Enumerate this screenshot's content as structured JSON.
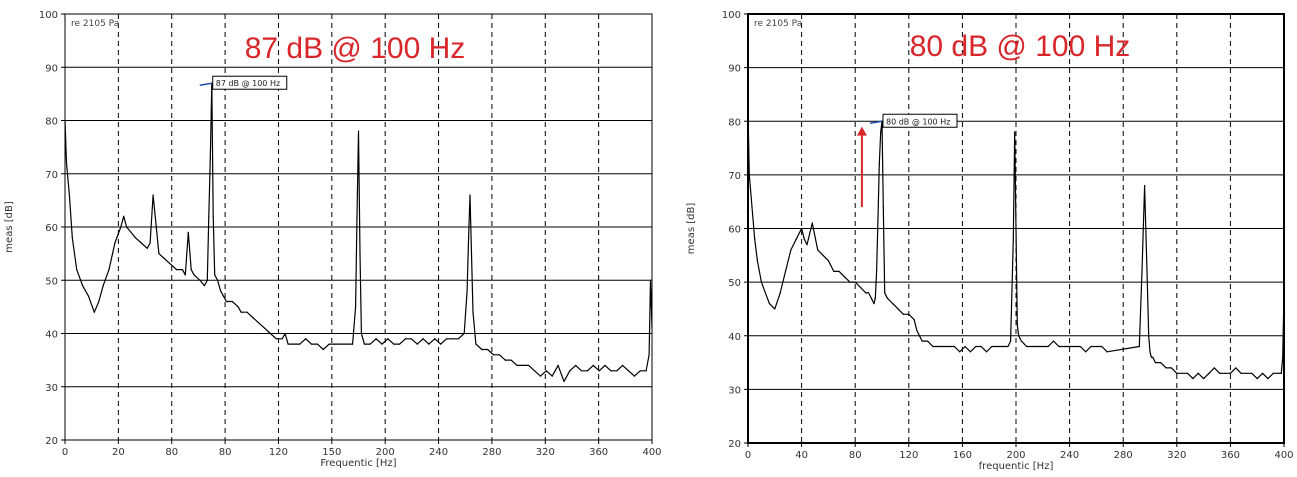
{
  "chart_data": [
    {
      "type": "line",
      "title": "",
      "annotation": "87 dB @ 100 Hz",
      "reference_label": "re 2105 Pa",
      "xlabel": "Frequentic [Hz]",
      "ylabel": "meas [dB]",
      "xlim": [
        0,
        400
      ],
      "ylim": [
        20,
        100
      ],
      "xticks": [
        "0",
        "20",
        "80",
        "80",
        "120",
        "150",
        "200",
        "240",
        "280",
        "320",
        "360",
        "400"
      ],
      "yticks": [
        "20",
        "30",
        "40",
        "50",
        "60",
        "70",
        "80",
        "90",
        "100"
      ],
      "grid": true,
      "callout": {
        "text": "87 dB @ 100 Hz",
        "x": 100,
        "y": 87
      },
      "series": [
        {
          "color": "#000000",
          "x": [
            0,
            1,
            3,
            5,
            8,
            12,
            16,
            20,
            23,
            26,
            30,
            34,
            38,
            40,
            42,
            45,
            48,
            52,
            56,
            58,
            60,
            64,
            68,
            72,
            76,
            80,
            82,
            84,
            86,
            88,
            92,
            95,
            97,
            98,
            99,
            100,
            101,
            102,
            104,
            106,
            108,
            110,
            114,
            118,
            120,
            124,
            128,
            132,
            136,
            140,
            144,
            148,
            150,
            152,
            156,
            160,
            164,
            168,
            172,
            176,
            180,
            184,
            188,
            192,
            196,
            198,
            199,
            200,
            201,
            202,
            204,
            208,
            212,
            216,
            220,
            224,
            228,
            232,
            236,
            240,
            244,
            248,
            252,
            256,
            260,
            264,
            268,
            272,
            274,
            275,
            276,
            277,
            278,
            280,
            284,
            288,
            292,
            296,
            300,
            304,
            308,
            312,
            316,
            320,
            324,
            328,
            332,
            336,
            340,
            344,
            348,
            352,
            356,
            360,
            364,
            368,
            372,
            376,
            380,
            384,
            388,
            392,
            396,
            398,
            399,
            400
          ],
          "y": [
            80,
            72,
            66,
            58,
            52,
            49,
            47,
            44,
            46,
            49,
            52,
            57,
            60,
            62,
            60,
            59,
            58,
            57,
            56,
            57,
            66,
            55,
            54,
            53,
            52,
            52,
            51,
            59,
            52,
            51,
            50,
            49,
            50,
            62,
            73,
            87,
            62,
            51,
            50,
            48,
            47,
            46,
            46,
            45,
            44,
            44,
            43,
            42,
            41,
            40,
            39,
            39,
            40,
            38,
            38,
            38,
            39,
            38,
            38,
            37,
            38,
            38,
            38,
            38,
            38,
            45,
            62,
            78,
            55,
            40,
            38,
            38,
            39,
            38,
            39,
            38,
            38,
            39,
            39,
            38,
            39,
            38,
            39,
            38,
            39,
            39,
            39,
            40,
            48,
            58,
            66,
            55,
            44,
            38,
            37,
            37,
            36,
            36,
            35,
            35,
            34,
            34,
            34,
            33,
            32,
            33,
            32,
            34,
            31,
            33,
            34,
            33,
            33,
            34,
            33,
            34,
            33,
            33,
            34,
            33,
            32,
            33,
            33,
            36,
            50,
            41
          ]
        }
      ]
    },
    {
      "type": "line",
      "title": "",
      "annotation": "80 dB @ 100 Hz",
      "reference_label": "re 2105 Pa",
      "xlabel": "frequentic [Hz]",
      "ylabel": "meas [dB]",
      "xlim": [
        0,
        400
      ],
      "ylim": [
        20,
        100
      ],
      "xticks": [
        "0",
        "40",
        "80",
        "120",
        "160",
        "200",
        "240",
        "280",
        "320",
        "360",
        "400"
      ],
      "yticks": [
        "20",
        "30",
        "40",
        "50",
        "60",
        "70",
        "80",
        "90",
        "100"
      ],
      "grid": true,
      "callout": {
        "text": "80 dB @ 100 Hz",
        "x": 100,
        "y": 80
      },
      "arrow": {
        "x": 85,
        "y_from": 64,
        "y_to": 79,
        "color": "#d9262b"
      },
      "series": [
        {
          "color": "#000000",
          "x": [
            0,
            1,
            3,
            5,
            7,
            10,
            13,
            16,
            20,
            24,
            28,
            32,
            36,
            38,
            40,
            42,
            44,
            48,
            52,
            56,
            60,
            62,
            64,
            68,
            72,
            76,
            80,
            84,
            88,
            90,
            92,
            94,
            95,
            96,
            97,
            98,
            99,
            100,
            101,
            102,
            104,
            108,
            112,
            116,
            120,
            124,
            126,
            128,
            130,
            134,
            138,
            142,
            146,
            150,
            154,
            158,
            162,
            166,
            170,
            174,
            178,
            182,
            186,
            190,
            194,
            196,
            198,
            199,
            200,
            201,
            202,
            204,
            208,
            212,
            216,
            220,
            224,
            228,
            232,
            236,
            240,
            244,
            248,
            252,
            256,
            260,
            264,
            268,
            292,
            294,
            296,
            298,
            299,
            300,
            301,
            302,
            304,
            308,
            312,
            316,
            320,
            324,
            328,
            332,
            336,
            340,
            344,
            348,
            352,
            356,
            360,
            364,
            368,
            372,
            376,
            380,
            384,
            388,
            392,
            396,
            398,
            399,
            400
          ],
          "y": [
            82,
            70,
            64,
            58,
            54,
            50,
            48,
            46,
            45,
            48,
            52,
            56,
            58,
            59,
            60,
            58,
            57,
            61,
            56,
            55,
            54,
            53,
            52,
            52,
            51,
            50,
            50,
            49,
            48,
            48,
            47,
            46,
            47,
            52,
            62,
            72,
            78,
            80,
            64,
            48,
            47,
            46,
            45,
            44,
            44,
            43,
            41,
            40,
            39,
            39,
            38,
            38,
            38,
            38,
            38,
            37,
            38,
            37,
            38,
            38,
            37,
            38,
            38,
            38,
            38,
            39,
            58,
            78,
            60,
            42,
            40,
            39,
            38,
            38,
            38,
            38,
            38,
            39,
            38,
            38,
            38,
            38,
            38,
            37,
            38,
            38,
            38,
            37,
            38,
            52,
            68,
            50,
            40,
            37,
            36,
            36,
            35,
            35,
            34,
            34,
            33,
            33,
            33,
            32,
            33,
            32,
            33,
            34,
            33,
            33,
            33,
            34,
            33,
            33,
            33,
            32,
            33,
            32,
            33,
            33,
            33,
            36,
            48
          ]
        }
      ]
    }
  ]
}
